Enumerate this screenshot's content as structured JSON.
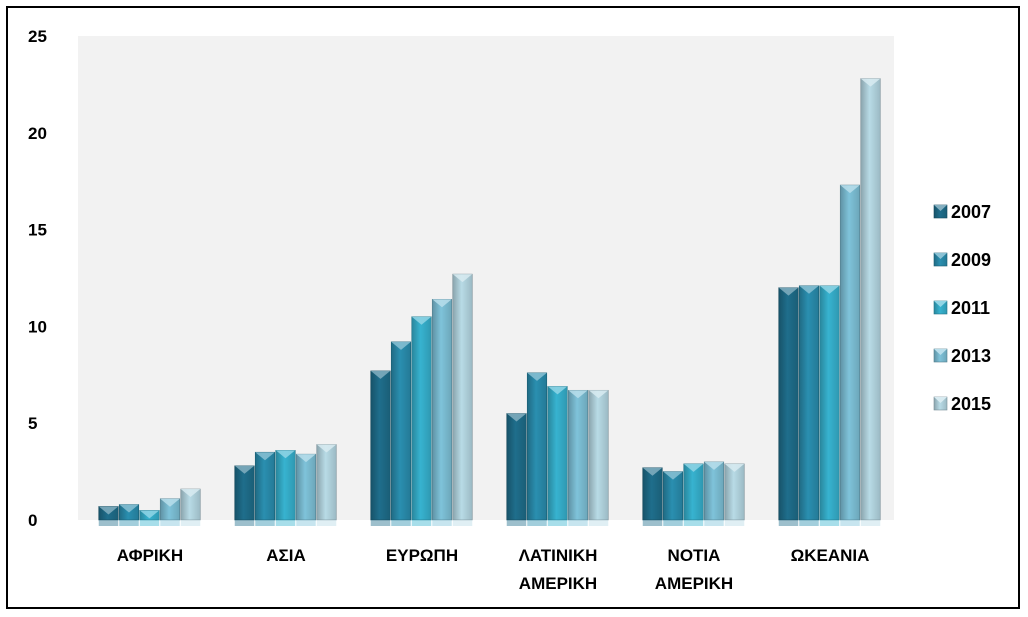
{
  "chart_data": {
    "type": "bar",
    "title": "",
    "xlabel": "",
    "ylabel": "",
    "ylim": [
      0,
      25
    ],
    "yticks": [
      "0",
      "5",
      "10",
      "15",
      "20",
      "25"
    ],
    "grid": false,
    "legend_position": "right",
    "categories": [
      [
        "ΑΦΡΙΚΗ"
      ],
      [
        "ΑΣΙΑ"
      ],
      [
        "ΕΥΡΩΠΗ"
      ],
      [
        "ΛΑΤΙΝΙΚΗ",
        "ΑΜΕΡΙΚΗ"
      ],
      [
        "ΝΟΤΙΑ",
        "ΑΜΕΡΙΚΗ"
      ],
      [
        "ΩΚΕΑΝΙΑ"
      ]
    ],
    "series": [
      {
        "name": "2007",
        "color": "#1f6e8c",
        "values": [
          0.7,
          2.8,
          7.7,
          5.5,
          2.7,
          12.0
        ]
      },
      {
        "name": "2009",
        "color": "#2a8fb0",
        "values": [
          0.8,
          3.5,
          9.2,
          7.6,
          2.5,
          12.1
        ]
      },
      {
        "name": "2011",
        "color": "#37b3d0",
        "values": [
          0.5,
          3.6,
          10.5,
          6.9,
          2.9,
          12.1
        ]
      },
      {
        "name": "2013",
        "color": "#7fc3da",
        "values": [
          1.1,
          3.4,
          11.4,
          6.7,
          3.0,
          17.3
        ]
      },
      {
        "name": "2015",
        "color": "#b8dbe6",
        "values": [
          1.6,
          3.9,
          12.7,
          6.7,
          2.9,
          22.8
        ]
      }
    ],
    "colors": {
      "plot_background": "#f2f2f2",
      "frame_border": "#000000"
    }
  }
}
